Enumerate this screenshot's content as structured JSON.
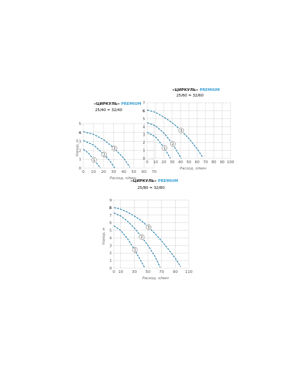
{
  "colors": {
    "curve": "#1f7aa6",
    "accent": "#3a9fd3",
    "grid": "#9a9a9a",
    "text": "#333333"
  },
  "chart_data": [
    {
      "type": "line",
      "title_brand": "«ЦИРКУЛЬ»",
      "title_accent": "PREMIUM",
      "subtitle": "25/40 = 32/40",
      "xlabel": "Расход, л/мин",
      "ylabel": "Напор, м",
      "xlim": [
        0,
        70
      ],
      "ylim": [
        0,
        5
      ],
      "xticks": [
        "0",
        "10",
        "20",
        "30",
        "40",
        "50",
        "60",
        "70"
      ],
      "yticks": [
        "0",
        "1",
        "2",
        "3",
        "4",
        "5"
      ],
      "highlight_ytick": "4",
      "grid": true,
      "series": [
        {
          "name": "1",
          "x": [
            0,
            5,
            10,
            15,
            17
          ],
          "y": [
            2.1,
            1.7,
            1.0,
            0.3,
            0
          ]
        },
        {
          "name": "2",
          "x": [
            0,
            10,
            20,
            27,
            31
          ],
          "y": [
            3.1,
            2.6,
            1.6,
            0.7,
            0
          ]
        },
        {
          "name": "3",
          "x": [
            0,
            10,
            20,
            30,
            40,
            46
          ],
          "y": [
            4.1,
            3.8,
            3.2,
            2.3,
            1.1,
            0.1
          ]
        }
      ]
    },
    {
      "type": "line",
      "title_brand": "«ЦИРКУЛЬ»",
      "title_accent": "PREMIUM",
      "subtitle": "25/60 = 32/60",
      "xlabel": "Расход, л/мин",
      "ylabel": "",
      "xlim": [
        0,
        100
      ],
      "ylim": [
        0,
        7
      ],
      "xticks": [
        "0",
        "10",
        "20",
        "30",
        "40",
        "50",
        "60",
        "70",
        "80",
        "90",
        "100"
      ],
      "yticks": [
        "0",
        "1",
        "2",
        "3",
        "4",
        "5",
        "6",
        "7"
      ],
      "highlight_ytick": "6",
      "grid": true,
      "series": [
        {
          "name": "1",
          "x": [
            0,
            10,
            20,
            25,
            28
          ],
          "y": [
            3.3,
            2.7,
            1.4,
            0.5,
            0
          ]
        },
        {
          "name": "2",
          "x": [
            0,
            10,
            20,
            30,
            38,
            41
          ],
          "y": [
            4.5,
            4.1,
            3.2,
            1.9,
            0.5,
            0
          ]
        },
        {
          "name": "3",
          "x": [
            0,
            10,
            20,
            30,
            40,
            50,
            60,
            67
          ],
          "y": [
            6.1,
            5.8,
            5.2,
            4.5,
            3.6,
            2.5,
            1.2,
            0.1
          ]
        }
      ]
    },
    {
      "type": "line",
      "title_brand": "«ЦИРКУЛЬ»",
      "title_accent": "PREMIUM",
      "subtitle": "25/80 = 32/80",
      "xlabel": "Расход, л/мин",
      "ylabel": "Напор, м",
      "xlim": [
        0,
        110
      ],
      "ylim": [
        0,
        9
      ],
      "xticks": [
        "0",
        "10",
        "30",
        "50",
        "70",
        "90",
        "110"
      ],
      "yticks": [
        "0",
        "1",
        "2",
        "3",
        "4",
        "5",
        "6",
        "7",
        "8",
        "9"
      ],
      "highlight_ytick": "8",
      "grid": true,
      "series": [
        {
          "name": "1",
          "x": [
            0,
            10,
            20,
            30,
            40,
            45
          ],
          "y": [
            5.6,
            5.0,
            3.9,
            2.5,
            0.9,
            0.1
          ]
        },
        {
          "name": "2",
          "x": [
            0,
            10,
            20,
            30,
            40,
            50,
            60,
            68
          ],
          "y": [
            7.3,
            6.9,
            6.2,
            5.3,
            4.2,
            3.0,
            1.6,
            0.1
          ]
        },
        {
          "name": "3",
          "x": [
            0,
            10,
            20,
            30,
            40,
            50,
            60,
            70,
            80,
            90,
            98
          ],
          "y": [
            8.0,
            7.8,
            7.4,
            6.9,
            6.3,
            5.5,
            4.6,
            3.6,
            2.5,
            1.3,
            0.2
          ]
        }
      ]
    }
  ]
}
